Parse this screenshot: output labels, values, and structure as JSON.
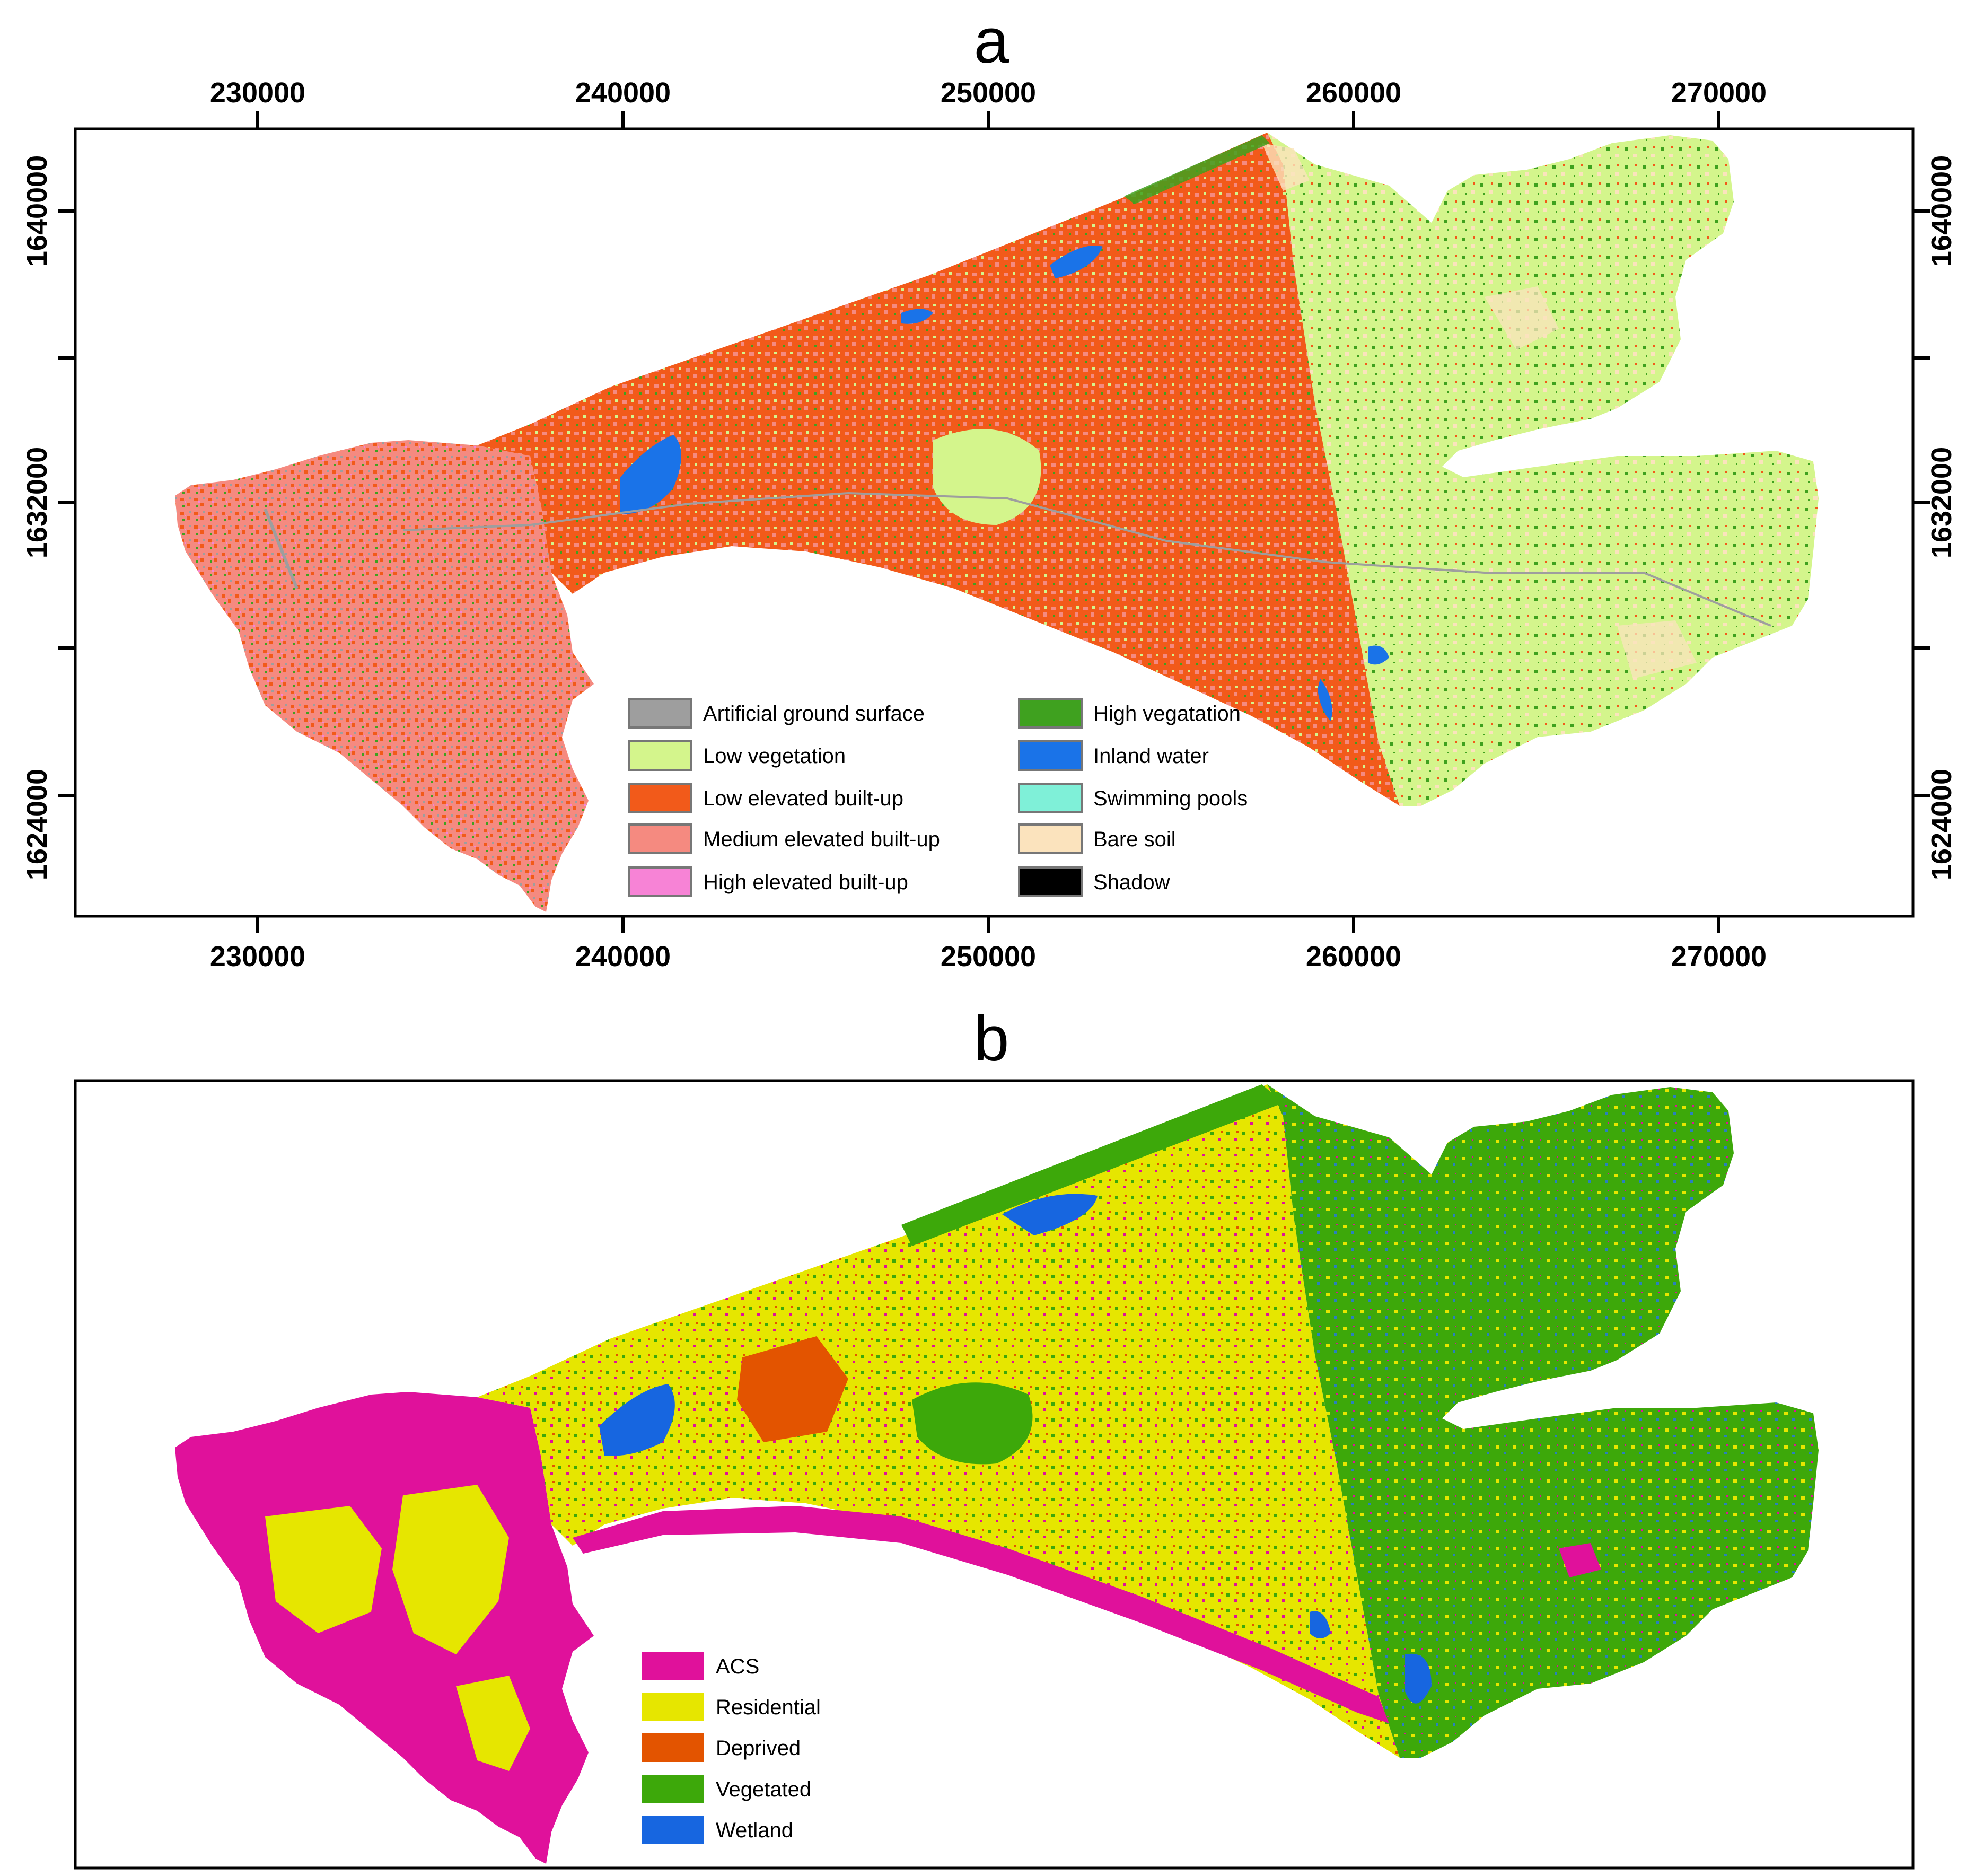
{
  "figure": {
    "panel_a": {
      "letter": "a",
      "x_ticks": [
        "230000",
        "240000",
        "250000",
        "260000",
        "270000"
      ],
      "y_ticks": [
        "1640000",
        "1632000",
        "1624000"
      ],
      "legend": [
        {
          "label": "Artificial ground surface",
          "color": "#9e9e9e"
        },
        {
          "label": "Low vegetation",
          "color": "#d4f58c"
        },
        {
          "label": "Low elevated  built-up",
          "color": "#f25a1a"
        },
        {
          "label": "Medium elevated  built-up",
          "color": "#f58a80"
        },
        {
          "label": "High elevated built-up",
          "color": "#f783d6"
        },
        {
          "label": "High vegatation",
          "color": "#3fa11f"
        },
        {
          "label": "Inland water",
          "color": "#1a73e8"
        },
        {
          "label": "Swimming pools",
          "color": "#7ff0d8"
        },
        {
          "label": "Bare soil",
          "color": "#fbe3bd"
        },
        {
          "label": "Shadow",
          "color": "#000000"
        }
      ]
    },
    "panel_b": {
      "letter": "b",
      "legend": [
        {
          "label": "ACS",
          "color": "#e0119b"
        },
        {
          "label": "Residential",
          "color": "#e6e600"
        },
        {
          "label": "Deprived",
          "color": "#e35400"
        },
        {
          "label": "Vegetated",
          "color": "#3da80a"
        },
        {
          "label": "Wetland",
          "color": "#1766e0"
        }
      ]
    }
  }
}
